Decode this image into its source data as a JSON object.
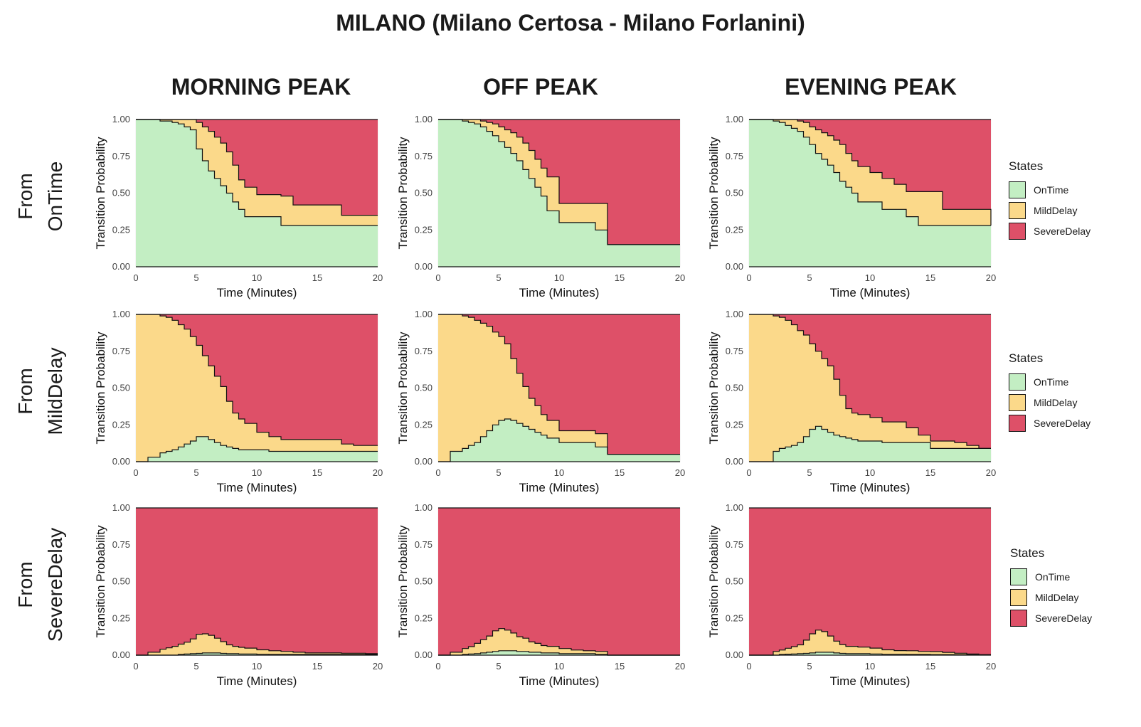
{
  "title": "MILANO (Milano Certosa - Milano Forlanini)",
  "columns": [
    "MORNING PEAK",
    "OFF PEAK",
    "EVENING PEAK"
  ],
  "rows": [
    {
      "line1": "From",
      "line2": "OnTime"
    },
    {
      "line1": "From",
      "line2": "MildDelay"
    },
    {
      "line1": "From",
      "line2": "SevereDelay"
    }
  ],
  "legend": {
    "title": "States",
    "items": [
      {
        "label": "OnTime",
        "color": "#c3eec3"
      },
      {
        "label": "MildDelay",
        "color": "#fbd98a"
      },
      {
        "label": "SevereDelay",
        "color": "#de5068"
      }
    ]
  },
  "axes": {
    "xlabel": "Time (Minutes)",
    "ylabel": "Transition Probability",
    "xticks": [
      "0",
      "5",
      "10",
      "15",
      "20"
    ],
    "yticks": [
      "0.00",
      "0.25",
      "0.50",
      "0.75",
      "1.00"
    ]
  },
  "chart_data": [
    {
      "type": "area",
      "stacked": true,
      "step": true,
      "row": "From OnTime",
      "column": "MORNING PEAK",
      "xlim": [
        0,
        20
      ],
      "ylim": [
        0,
        1
      ],
      "x": [
        0,
        1,
        2,
        2.5,
        3,
        3.5,
        4,
        4.5,
        5,
        5.5,
        6,
        6.5,
        7,
        7.5,
        8,
        8.5,
        9,
        10,
        11,
        12,
        13,
        14,
        15,
        16,
        17,
        18,
        19,
        20
      ],
      "series": [
        {
          "name": "OnTime",
          "values": [
            1.0,
            1.0,
            0.99,
            0.99,
            0.98,
            0.97,
            0.95,
            0.93,
            0.8,
            0.72,
            0.65,
            0.6,
            0.55,
            0.5,
            0.44,
            0.39,
            0.34,
            0.34,
            0.34,
            0.28,
            0.28,
            0.28,
            0.28,
            0.28,
            0.28,
            0.28,
            0.28,
            0.28
          ]
        },
        {
          "name": "MildDelay",
          "values": [
            0.0,
            0.0,
            0.01,
            0.01,
            0.02,
            0.03,
            0.05,
            0.07,
            0.18,
            0.23,
            0.27,
            0.28,
            0.29,
            0.28,
            0.25,
            0.2,
            0.2,
            0.15,
            0.15,
            0.2,
            0.14,
            0.14,
            0.14,
            0.14,
            0.07,
            0.07,
            0.07,
            0.07
          ]
        }
      ]
    },
    {
      "type": "area",
      "stacked": true,
      "step": true,
      "row": "From OnTime",
      "column": "OFF PEAK",
      "xlim": [
        0,
        20
      ],
      "ylim": [
        0,
        1
      ],
      "x": [
        0,
        1,
        2,
        2.5,
        3,
        3.5,
        4,
        4.5,
        5,
        5.5,
        6,
        6.5,
        7,
        7.5,
        8,
        8.5,
        9,
        10,
        11,
        12,
        13,
        14,
        15,
        16,
        17,
        18,
        19,
        20
      ],
      "series": [
        {
          "name": "OnTime",
          "values": [
            1.0,
            1.0,
            0.99,
            0.98,
            0.97,
            0.95,
            0.92,
            0.89,
            0.85,
            0.81,
            0.77,
            0.72,
            0.66,
            0.6,
            0.54,
            0.48,
            0.38,
            0.3,
            0.3,
            0.3,
            0.25,
            0.15,
            0.15,
            0.15,
            0.15,
            0.15,
            0.15,
            0.15
          ]
        },
        {
          "name": "MildDelay",
          "values": [
            0.0,
            0.0,
            0.01,
            0.02,
            0.03,
            0.04,
            0.06,
            0.08,
            0.1,
            0.12,
            0.14,
            0.16,
            0.18,
            0.19,
            0.19,
            0.19,
            0.23,
            0.13,
            0.13,
            0.13,
            0.18,
            0.0,
            0.0,
            0.0,
            0.0,
            0.0,
            0.0,
            0.0
          ]
        }
      ]
    },
    {
      "type": "area",
      "stacked": true,
      "step": true,
      "row": "From OnTime",
      "column": "EVENING PEAK",
      "xlim": [
        0,
        20
      ],
      "ylim": [
        0,
        1
      ],
      "x": [
        0,
        1,
        2,
        2.5,
        3,
        3.5,
        4,
        4.5,
        5,
        5.5,
        6,
        6.5,
        7,
        7.5,
        8,
        8.5,
        9,
        10,
        11,
        12,
        13,
        14,
        15,
        16,
        17,
        18,
        19,
        20
      ],
      "series": [
        {
          "name": "OnTime",
          "values": [
            1.0,
            1.0,
            0.99,
            0.98,
            0.96,
            0.94,
            0.92,
            0.88,
            0.83,
            0.77,
            0.73,
            0.69,
            0.64,
            0.58,
            0.54,
            0.5,
            0.44,
            0.44,
            0.39,
            0.39,
            0.34,
            0.28,
            0.28,
            0.28,
            0.28,
            0.28,
            0.28,
            0.28
          ]
        },
        {
          "name": "MildDelay",
          "values": [
            0.0,
            0.0,
            0.01,
            0.02,
            0.04,
            0.06,
            0.07,
            0.1,
            0.12,
            0.16,
            0.18,
            0.2,
            0.22,
            0.25,
            0.23,
            0.22,
            0.24,
            0.2,
            0.21,
            0.17,
            0.17,
            0.23,
            0.23,
            0.11,
            0.11,
            0.11,
            0.11,
            0.0
          ]
        }
      ]
    },
    {
      "type": "area",
      "stacked": true,
      "step": true,
      "row": "From MildDelay",
      "column": "MORNING PEAK",
      "xlim": [
        0,
        20
      ],
      "ylim": [
        0,
        1
      ],
      "x": [
        0,
        1,
        2,
        2.5,
        3,
        3.5,
        4,
        4.5,
        5,
        5.5,
        6,
        6.5,
        7,
        7.5,
        8,
        8.5,
        9,
        10,
        11,
        12,
        13,
        14,
        15,
        16,
        17,
        18,
        19,
        20
      ],
      "series": [
        {
          "name": "OnTime",
          "values": [
            0.0,
            0.03,
            0.06,
            0.07,
            0.08,
            0.1,
            0.12,
            0.14,
            0.17,
            0.17,
            0.15,
            0.13,
            0.11,
            0.1,
            0.09,
            0.08,
            0.08,
            0.08,
            0.07,
            0.07,
            0.07,
            0.07,
            0.07,
            0.07,
            0.07,
            0.07,
            0.07,
            0.07
          ]
        },
        {
          "name": "MildDelay",
          "values": [
            1.0,
            0.97,
            0.93,
            0.91,
            0.88,
            0.83,
            0.78,
            0.71,
            0.62,
            0.55,
            0.5,
            0.45,
            0.4,
            0.31,
            0.24,
            0.21,
            0.18,
            0.12,
            0.1,
            0.08,
            0.08,
            0.08,
            0.08,
            0.08,
            0.05,
            0.04,
            0.04,
            0.04
          ]
        }
      ]
    },
    {
      "type": "area",
      "stacked": true,
      "step": true,
      "row": "From MildDelay",
      "column": "OFF PEAK",
      "xlim": [
        0,
        20
      ],
      "ylim": [
        0,
        1
      ],
      "x": [
        0,
        1,
        2,
        2.5,
        3,
        3.5,
        4,
        4.5,
        5,
        5.5,
        6,
        6.5,
        7,
        7.5,
        8,
        8.5,
        9,
        10,
        11,
        12,
        13,
        14,
        15,
        16,
        17,
        18,
        19,
        20
      ],
      "series": [
        {
          "name": "OnTime",
          "values": [
            0.0,
            0.07,
            0.09,
            0.11,
            0.13,
            0.17,
            0.21,
            0.25,
            0.28,
            0.29,
            0.28,
            0.26,
            0.24,
            0.22,
            0.2,
            0.18,
            0.16,
            0.13,
            0.13,
            0.13,
            0.1,
            0.05,
            0.05,
            0.05,
            0.05,
            0.05,
            0.05,
            0.05
          ]
        },
        {
          "name": "MildDelay",
          "values": [
            1.0,
            0.93,
            0.9,
            0.87,
            0.83,
            0.77,
            0.71,
            0.63,
            0.57,
            0.51,
            0.42,
            0.34,
            0.27,
            0.21,
            0.18,
            0.14,
            0.12,
            0.08,
            0.08,
            0.08,
            0.09,
            0.0,
            0.0,
            0.0,
            0.0,
            0.0,
            0.0,
            0.0
          ]
        }
      ]
    },
    {
      "type": "area",
      "stacked": true,
      "step": true,
      "row": "From MildDelay",
      "column": "EVENING PEAK",
      "xlim": [
        0,
        20
      ],
      "ylim": [
        0,
        1
      ],
      "x": [
        0,
        1,
        2,
        2.5,
        3,
        3.5,
        4,
        4.5,
        5,
        5.5,
        6,
        6.5,
        7,
        7.5,
        8,
        8.5,
        9,
        10,
        11,
        12,
        13,
        14,
        15,
        16,
        17,
        18,
        19,
        20
      ],
      "series": [
        {
          "name": "OnTime",
          "values": [
            0.0,
            0.0,
            0.07,
            0.09,
            0.1,
            0.11,
            0.13,
            0.17,
            0.22,
            0.24,
            0.22,
            0.2,
            0.18,
            0.17,
            0.16,
            0.15,
            0.14,
            0.14,
            0.13,
            0.13,
            0.13,
            0.13,
            0.09,
            0.09,
            0.09,
            0.09,
            0.09,
            0.09
          ]
        },
        {
          "name": "MildDelay",
          "values": [
            1.0,
            1.0,
            0.92,
            0.89,
            0.86,
            0.82,
            0.76,
            0.69,
            0.58,
            0.51,
            0.48,
            0.45,
            0.38,
            0.28,
            0.2,
            0.18,
            0.18,
            0.16,
            0.14,
            0.14,
            0.1,
            0.05,
            0.05,
            0.05,
            0.04,
            0.02,
            0.0,
            0.0
          ]
        }
      ]
    },
    {
      "type": "area",
      "stacked": true,
      "step": true,
      "row": "From SevereDelay",
      "column": "MORNING PEAK",
      "xlim": [
        0,
        20
      ],
      "ylim": [
        0,
        1
      ],
      "x": [
        0,
        1,
        2,
        2.5,
        3,
        3.5,
        4,
        4.5,
        5,
        5.5,
        6,
        6.5,
        7,
        7.5,
        8,
        8.5,
        9,
        10,
        11,
        12,
        13,
        14,
        15,
        16,
        17,
        18,
        19,
        20
      ],
      "series": [
        {
          "name": "OnTime",
          "values": [
            0.0,
            0.0,
            0.0,
            0.0,
            0.0,
            0.005,
            0.008,
            0.01,
            0.012,
            0.015,
            0.015,
            0.015,
            0.012,
            0.01,
            0.01,
            0.008,
            0.008,
            0.006,
            0.005,
            0.005,
            0.005,
            0.005,
            0.005,
            0.005,
            0.005,
            0.005,
            0.005,
            0.005
          ]
        },
        {
          "name": "MildDelay",
          "values": [
            0.0,
            0.02,
            0.04,
            0.05,
            0.06,
            0.07,
            0.08,
            0.1,
            0.13,
            0.13,
            0.12,
            0.1,
            0.08,
            0.06,
            0.05,
            0.045,
            0.04,
            0.03,
            0.025,
            0.02,
            0.015,
            0.01,
            0.01,
            0.01,
            0.008,
            0.008,
            0.005,
            0.005
          ]
        }
      ]
    },
    {
      "type": "area",
      "stacked": true,
      "step": true,
      "row": "From SevereDelay",
      "column": "OFF PEAK",
      "xlim": [
        0,
        20
      ],
      "ylim": [
        0,
        1
      ],
      "x": [
        0,
        1,
        2,
        2.5,
        3,
        3.5,
        4,
        4.5,
        5,
        5.5,
        6,
        6.5,
        7,
        7.5,
        8,
        8.5,
        9,
        10,
        11,
        12,
        13,
        14,
        15,
        16,
        17,
        18,
        19,
        20
      ],
      "series": [
        {
          "name": "OnTime",
          "values": [
            0.0,
            0.0,
            0.005,
            0.008,
            0.01,
            0.015,
            0.02,
            0.025,
            0.03,
            0.03,
            0.03,
            0.025,
            0.025,
            0.02,
            0.02,
            0.015,
            0.015,
            0.01,
            0.01,
            0.01,
            0.005,
            0.0,
            0.0,
            0.0,
            0.0,
            0.0,
            0.0,
            0.0
          ]
        },
        {
          "name": "MildDelay",
          "values": [
            0.0,
            0.02,
            0.04,
            0.05,
            0.07,
            0.09,
            0.11,
            0.14,
            0.15,
            0.14,
            0.12,
            0.1,
            0.09,
            0.07,
            0.06,
            0.05,
            0.045,
            0.035,
            0.025,
            0.02,
            0.02,
            0.0,
            0.0,
            0.0,
            0.0,
            0.0,
            0.0,
            0.0
          ]
        }
      ]
    },
    {
      "type": "area",
      "stacked": true,
      "step": true,
      "row": "From SevereDelay",
      "column": "EVENING PEAK",
      "xlim": [
        0,
        20
      ],
      "ylim": [
        0,
        1
      ],
      "x": [
        0,
        1,
        2,
        2.5,
        3,
        3.5,
        4,
        4.5,
        5,
        5.5,
        6,
        6.5,
        7,
        7.5,
        8,
        8.5,
        9,
        10,
        11,
        12,
        13,
        14,
        15,
        16,
        17,
        18,
        19,
        20
      ],
      "series": [
        {
          "name": "OnTime",
          "values": [
            0.0,
            0.0,
            0.0,
            0.005,
            0.007,
            0.008,
            0.01,
            0.012,
            0.015,
            0.02,
            0.02,
            0.02,
            0.015,
            0.012,
            0.01,
            0.01,
            0.01,
            0.008,
            0.006,
            0.006,
            0.005,
            0.005,
            0.004,
            0.004,
            0.003,
            0.003,
            0.003,
            0.003
          ]
        },
        {
          "name": "MildDelay",
          "values": [
            0.0,
            0.0,
            0.025,
            0.03,
            0.04,
            0.05,
            0.06,
            0.09,
            0.13,
            0.15,
            0.14,
            0.11,
            0.08,
            0.06,
            0.05,
            0.05,
            0.045,
            0.04,
            0.03,
            0.025,
            0.025,
            0.02,
            0.02,
            0.015,
            0.01,
            0.005,
            0.0,
            0.0
          ]
        }
      ]
    }
  ]
}
